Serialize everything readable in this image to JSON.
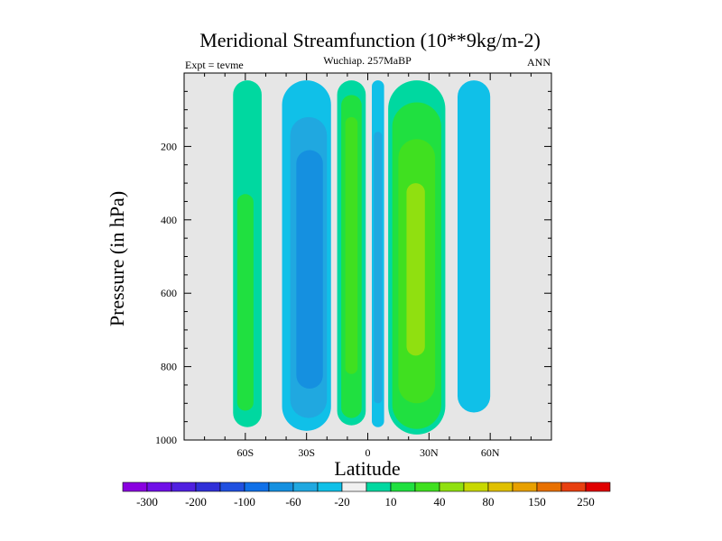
{
  "chart_data": {
    "type": "filled-contour",
    "title": "Meridional Streamfunction (10**9kg/m-2)",
    "subtitle_left": "Expt = tevme",
    "subtitle_center": "Wuchiap. 257MaBP",
    "subtitle_right": "ANN",
    "xlabel": "Latitude",
    "ylabel": "Pressure (in hPa)",
    "xlim": [
      -90,
      90
    ],
    "ylim": [
      0,
      1000
    ],
    "y_inverted": true,
    "x_ticks": [
      {
        "value": -60,
        "label": "60S"
      },
      {
        "value": -30,
        "label": "30S"
      },
      {
        "value": 0,
        "label": "0"
      },
      {
        "value": 30,
        "label": "30N"
      },
      {
        "value": 60,
        "label": "60N"
      }
    ],
    "y_ticks": [
      {
        "value": 200,
        "label": "200"
      },
      {
        "value": 400,
        "label": "400"
      },
      {
        "value": 600,
        "label": "600"
      },
      {
        "value": 800,
        "label": "800"
      },
      {
        "value": 1000,
        "label": "1000"
      }
    ],
    "missing_color": "#e6e6e6",
    "colorbar": {
      "colors": [
        "#8a00e0",
        "#7010e8",
        "#5020e0",
        "#3030d8",
        "#2050e0",
        "#1070e8",
        "#1590e0",
        "#20a8e0",
        "#10c0e8",
        "#f0f0f0",
        "#00d8a0",
        "#20e040",
        "#40e020",
        "#90e010",
        "#c8d800",
        "#e0c000",
        "#e8a000",
        "#e87000",
        "#e84010",
        "#e00000"
      ],
      "labels": [
        "-300",
        "-200",
        "-100",
        "-60",
        "-20",
        "10",
        "40",
        "80",
        "150",
        "250"
      ],
      "label_positions": [
        0.5,
        2.5,
        4.5,
        6.5,
        8.5,
        10.5,
        12.5,
        14.5,
        16.5,
        18.5
      ]
    },
    "regions": [
      {
        "name": "sh-polar-positive-outer",
        "level": 10,
        "color": "#00d8a0",
        "lat_range": [
          -66,
          -52
        ],
        "p_range": [
          20,
          965
        ]
      },
      {
        "name": "sh-polar-positive-inner",
        "level": 40,
        "color": "#20e040",
        "lat_range": [
          -64,
          -56
        ],
        "p_range": [
          330,
          920
        ]
      },
      {
        "name": "sh-ferrel-negative-outer",
        "level": -10,
        "color": "#10c0e8",
        "lat_range": [
          -42,
          -18
        ],
        "p_range": [
          20,
          975
        ]
      },
      {
        "name": "sh-ferrel-negative-mid",
        "level": -20,
        "color": "#20a8e0",
        "lat_range": [
          -38,
          -20
        ],
        "p_range": [
          120,
          940
        ]
      },
      {
        "name": "sh-ferrel-negative-inner",
        "level": -40,
        "color": "#1590e0",
        "lat_range": [
          -35,
          -22
        ],
        "p_range": [
          210,
          860
        ]
      },
      {
        "name": "sh-hadley-positive-outer",
        "level": 10,
        "color": "#00d8a0",
        "lat_range": [
          -15,
          -1
        ],
        "p_range": [
          20,
          960
        ]
      },
      {
        "name": "sh-hadley-positive-mid",
        "level": 40,
        "color": "#20e040",
        "lat_range": [
          -13,
          -3
        ],
        "p_range": [
          60,
          940
        ]
      },
      {
        "name": "sh-hadley-positive-inner",
        "level": 60,
        "color": "#40e020",
        "lat_range": [
          -11,
          -5
        ],
        "p_range": [
          120,
          820
        ]
      },
      {
        "name": "equatorial-negative-outer",
        "level": -10,
        "color": "#10c0e8",
        "lat_range": [
          2,
          8
        ],
        "p_range": [
          20,
          965
        ]
      },
      {
        "name": "equatorial-negative-inner",
        "level": -20,
        "color": "#20a8e0",
        "lat_range": [
          3,
          7
        ],
        "p_range": [
          160,
          900
        ]
      },
      {
        "name": "nh-hadley-positive-outer",
        "level": 10,
        "color": "#00d8a0",
        "lat_range": [
          10,
          38
        ],
        "p_range": [
          20,
          985
        ]
      },
      {
        "name": "nh-hadley-positive-mid",
        "level": 40,
        "color": "#20e040",
        "lat_range": [
          12,
          36
        ],
        "p_range": [
          80,
          970
        ]
      },
      {
        "name": "nh-hadley-positive-inner",
        "level": 60,
        "color": "#40e020",
        "lat_range": [
          15,
          33
        ],
        "p_range": [
          180,
          900
        ]
      },
      {
        "name": "nh-hadley-positive-core",
        "level": 80,
        "color": "#90e010",
        "lat_range": [
          19,
          28
        ],
        "p_range": [
          300,
          770
        ]
      },
      {
        "name": "nh-ferrel-negative-outer",
        "level": -10,
        "color": "#10c0e8",
        "lat_range": [
          44,
          60
        ],
        "p_range": [
          20,
          925
        ]
      }
    ]
  }
}
